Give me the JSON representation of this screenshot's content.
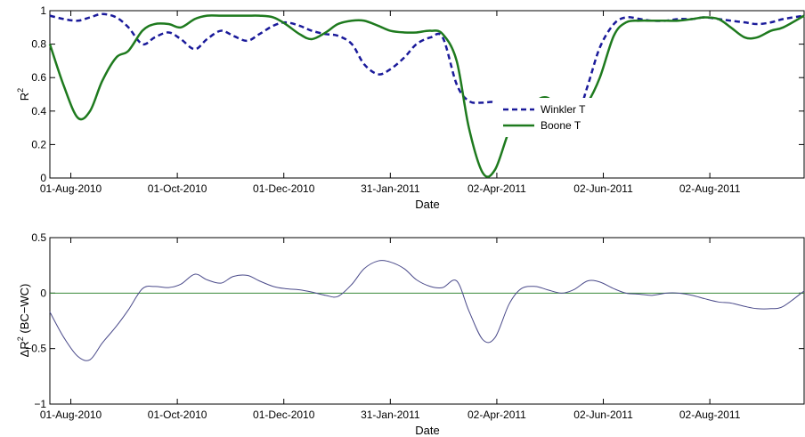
{
  "chart_data": [
    {
      "type": "line",
      "xlabel": "Date",
      "ylabel": "R²",
      "ylabel_base": "R",
      "ylabel_sup": "2",
      "xlim": [
        "2010-07-20",
        "2011-09-25"
      ],
      "ylim": [
        0,
        1
      ],
      "xticks": [
        "01-Aug-2010",
        "01-Oct-2010",
        "01-Dec-2010",
        "31-Jan-2011",
        "02-Apr-2011",
        "02-Jun-2011",
        "02-Aug-2011"
      ],
      "xtick_dates": [
        "2010-08-01",
        "2010-10-01",
        "2010-12-01",
        "2011-01-31",
        "2011-04-02",
        "2011-06-02",
        "2011-08-02"
      ],
      "yticks": [
        "0",
        "0.2",
        "0.4",
        "0.6",
        "0.8",
        "1"
      ],
      "ytick_values": [
        0,
        0.2,
        0.4,
        0.6,
        0.8,
        1
      ],
      "grid": false,
      "legend_position": "center-right",
      "series": [
        {
          "name": "Winkler T",
          "color": "#1a1a9a",
          "style": "dashed",
          "x": [
            "2010-07-20",
            "2010-07-28",
            "2010-08-05",
            "2010-08-12",
            "2010-08-19",
            "2010-08-27",
            "2010-09-03",
            "2010-09-11",
            "2010-09-18",
            "2010-09-26",
            "2010-10-03",
            "2010-10-11",
            "2010-10-18",
            "2010-10-26",
            "2010-11-02",
            "2010-11-10",
            "2010-11-17",
            "2010-11-25",
            "2010-12-02",
            "2010-12-10",
            "2010-12-17",
            "2010-12-25",
            "2011-01-01",
            "2011-01-09",
            "2011-01-16",
            "2011-01-24",
            "2011-01-31",
            "2011-02-08",
            "2011-02-15",
            "2011-02-23",
            "2011-03-02",
            "2011-03-10",
            "2011-03-17",
            "2011-03-25",
            "2011-04-01",
            "2011-04-09",
            "2011-04-16",
            "2011-04-24",
            "2011-05-01",
            "2011-05-09",
            "2011-05-16",
            "2011-05-24",
            "2011-05-31",
            "2011-06-08",
            "2011-06-15",
            "2011-06-23",
            "2011-06-30",
            "2011-07-08",
            "2011-07-15",
            "2011-07-23",
            "2011-07-30",
            "2011-08-07",
            "2011-08-14",
            "2011-08-22",
            "2011-08-29",
            "2011-09-06",
            "2011-09-13",
            "2011-09-25"
          ],
          "y": [
            0.97,
            0.95,
            0.94,
            0.96,
            0.98,
            0.96,
            0.9,
            0.8,
            0.84,
            0.87,
            0.83,
            0.77,
            0.83,
            0.88,
            0.85,
            0.82,
            0.86,
            0.91,
            0.93,
            0.91,
            0.88,
            0.86,
            0.85,
            0.8,
            0.68,
            0.62,
            0.65,
            0.72,
            0.8,
            0.84,
            0.84,
            0.56,
            0.46,
            0.45,
            0.45,
            0.38,
            0.35,
            0.4,
            0.47,
            0.4,
            0.31,
            0.55,
            0.78,
            0.92,
            0.96,
            0.95,
            0.94,
            0.94,
            0.95,
            0.95,
            0.96,
            0.95,
            0.94,
            0.93,
            0.92,
            0.93,
            0.95,
            0.97
          ]
        },
        {
          "name": "Boone T",
          "color": "#1e7a1e",
          "style": "solid",
          "x": [
            "2010-07-20",
            "2010-07-28",
            "2010-08-05",
            "2010-08-12",
            "2010-08-19",
            "2010-08-27",
            "2010-09-03",
            "2010-09-11",
            "2010-09-18",
            "2010-09-26",
            "2010-10-03",
            "2010-10-11",
            "2010-10-18",
            "2010-10-26",
            "2010-11-02",
            "2010-11-10",
            "2010-11-17",
            "2010-11-25",
            "2010-12-02",
            "2010-12-10",
            "2010-12-17",
            "2010-12-25",
            "2011-01-01",
            "2011-01-09",
            "2011-01-16",
            "2011-01-24",
            "2011-01-31",
            "2011-02-08",
            "2011-02-15",
            "2011-02-23",
            "2011-03-02",
            "2011-03-10",
            "2011-03-17",
            "2011-03-25",
            "2011-04-01",
            "2011-04-09",
            "2011-04-16",
            "2011-04-24",
            "2011-05-01",
            "2011-05-09",
            "2011-05-16",
            "2011-05-24",
            "2011-05-31",
            "2011-06-08",
            "2011-06-15",
            "2011-06-23",
            "2011-06-30",
            "2011-07-08",
            "2011-07-15",
            "2011-07-23",
            "2011-07-30",
            "2011-08-07",
            "2011-08-14",
            "2011-08-22",
            "2011-08-29",
            "2011-09-06",
            "2011-09-13",
            "2011-09-25"
          ],
          "y": [
            0.8,
            0.55,
            0.36,
            0.4,
            0.58,
            0.72,
            0.76,
            0.88,
            0.92,
            0.92,
            0.9,
            0.95,
            0.97,
            0.97,
            0.97,
            0.97,
            0.97,
            0.96,
            0.92,
            0.86,
            0.83,
            0.87,
            0.92,
            0.94,
            0.94,
            0.91,
            0.88,
            0.87,
            0.87,
            0.88,
            0.86,
            0.7,
            0.3,
            0.03,
            0.05,
            0.28,
            0.4,
            0.46,
            0.48,
            0.4,
            0.35,
            0.45,
            0.6,
            0.85,
            0.93,
            0.94,
            0.94,
            0.94,
            0.94,
            0.95,
            0.96,
            0.95,
            0.9,
            0.84,
            0.84,
            0.88,
            0.9,
            0.97
          ]
        }
      ]
    },
    {
      "type": "line",
      "xlabel": "Date",
      "ylabel": "ΔR² (BC−WC)",
      "ylabel_base": "ΔR",
      "ylabel_sup": "2",
      "ylabel_tail": " (BC−WC)",
      "xlim": [
        "2010-07-20",
        "2011-09-25"
      ],
      "ylim": [
        -1,
        0.5
      ],
      "xticks": [
        "01-Aug-2010",
        "01-Oct-2010",
        "01-Dec-2010",
        "31-Jan-2011",
        "02-Apr-2011",
        "02-Jun-2011",
        "02-Aug-2011"
      ],
      "xtick_dates": [
        "2010-08-01",
        "2010-10-01",
        "2010-12-01",
        "2011-01-31",
        "2011-04-02",
        "2011-06-02",
        "2011-08-02"
      ],
      "yticks": [
        "−1",
        "−0.5",
        "0",
        "0.5"
      ],
      "ytick_values": [
        -1,
        -0.5,
        0,
        0.5
      ],
      "zero_line": true,
      "zero_line_color": "#3a8a3a",
      "grid": false,
      "series": [
        {
          "color": "#4a4a8a",
          "style": "solid",
          "x": [
            "2010-07-20",
            "2010-07-28",
            "2010-08-05",
            "2010-08-12",
            "2010-08-19",
            "2010-08-27",
            "2010-09-03",
            "2010-09-11",
            "2010-09-18",
            "2010-09-26",
            "2010-10-03",
            "2010-10-11",
            "2010-10-18",
            "2010-10-26",
            "2010-11-02",
            "2010-11-10",
            "2010-11-17",
            "2010-11-25",
            "2010-12-02",
            "2010-12-10",
            "2010-12-17",
            "2010-12-25",
            "2011-01-01",
            "2011-01-09",
            "2011-01-16",
            "2011-01-24",
            "2011-01-31",
            "2011-02-08",
            "2011-02-15",
            "2011-02-23",
            "2011-03-02",
            "2011-03-10",
            "2011-03-17",
            "2011-03-25",
            "2011-04-01",
            "2011-04-09",
            "2011-04-16",
            "2011-04-24",
            "2011-05-01",
            "2011-05-09",
            "2011-05-16",
            "2011-05-24",
            "2011-05-31",
            "2011-06-08",
            "2011-06-15",
            "2011-06-23",
            "2011-06-30",
            "2011-07-08",
            "2011-07-15",
            "2011-07-23",
            "2011-07-30",
            "2011-08-07",
            "2011-08-14",
            "2011-08-22",
            "2011-08-29",
            "2011-09-06",
            "2011-09-13",
            "2011-09-25"
          ],
          "y": [
            -0.17,
            -0.4,
            -0.57,
            -0.6,
            -0.45,
            -0.3,
            -0.15,
            0.04,
            0.06,
            0.05,
            0.08,
            0.17,
            0.12,
            0.09,
            0.15,
            0.16,
            0.11,
            0.06,
            0.04,
            0.03,
            0.01,
            -0.02,
            -0.03,
            0.08,
            0.22,
            0.29,
            0.28,
            0.22,
            0.12,
            0.06,
            0.05,
            0.11,
            -0.16,
            -0.42,
            -0.4,
            -0.1,
            0.04,
            0.06,
            0.03,
            0.0,
            0.03,
            0.11,
            0.1,
            0.04,
            0.0,
            -0.01,
            -0.02,
            0.0,
            0.0,
            -0.02,
            -0.05,
            -0.08,
            -0.09,
            -0.12,
            -0.14,
            -0.14,
            -0.12,
            0.02
          ]
        }
      ]
    }
  ]
}
